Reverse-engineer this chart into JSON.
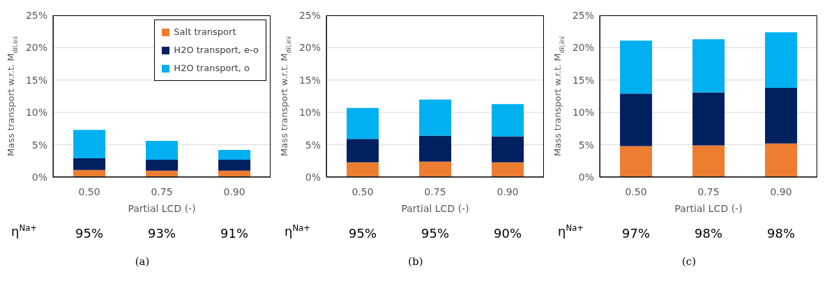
{
  "chart_data": [
    {
      "type": "bar",
      "stacked": true,
      "categories": [
        "0.50",
        "0.75",
        "0.90"
      ],
      "xlabel": "Partial LCD (-)",
      "ylabel": "Mass transport w.r.t. M$_{dil,ini}$",
      "ylim": [
        0,
        25
      ],
      "yticks": [
        {
          "value": 0,
          "label": "0%"
        },
        {
          "value": 5,
          "label": "5%"
        },
        {
          "value": 10,
          "label": "10%"
        },
        {
          "value": 15,
          "label": "15%"
        },
        {
          "value": 20,
          "label": "20%"
        },
        {
          "value": 25,
          "label": "25%"
        }
      ],
      "grid": "y",
      "legend": "top right",
      "series": [
        {
          "name": "Salt transport",
          "color": "#ed7d31",
          "values": [
            1.1,
            1.0,
            1.0
          ]
        },
        {
          "name": "H2O transport, e-o",
          "color": "#002060",
          "values": [
            1.8,
            1.7,
            1.7
          ]
        },
        {
          "name": "H2O transport, o",
          "color": "#00b0f0",
          "values": [
            4.4,
            2.9,
            1.5
          ]
        }
      ],
      "annotations": [
        "η$^{Na+}$",
        "95%",
        "93%",
        "91%",
        "(a)"
      ]
    },
    {
      "type": "bar",
      "stacked": true,
      "categories": [
        "0.50",
        "0.75",
        "0.90"
      ],
      "xlabel": "Partial LCD (-)",
      "ylabel": "Mass transport w.r.t. M$_{dil,ini}$",
      "ylim": [
        0,
        25
      ],
      "yticks": [
        {
          "value": 0,
          "label": "0%"
        },
        {
          "value": 5,
          "label": "5%"
        },
        {
          "value": 10,
          "label": "10%"
        },
        {
          "value": 15,
          "label": "15%"
        },
        {
          "value": 20,
          "label": "20%"
        },
        {
          "value": 25,
          "label": "25%"
        }
      ],
      "grid": "y",
      "series": [
        {
          "color": "#ed7d31",
          "values": [
            2.3,
            2.4,
            2.3
          ]
        },
        {
          "color": "#002060",
          "values": [
            3.6,
            4.0,
            4.0
          ]
        },
        {
          "color": "#00b0f0",
          "values": [
            4.8,
            5.6,
            5.0
          ]
        }
      ],
      "annotations": [
        "η$^{Na+}$",
        "95%",
        "95%",
        "90%",
        "(b)"
      ]
    },
    {
      "type": "bar",
      "stacked": true,
      "categories": [
        "0.50",
        "0.75",
        "0.90"
      ],
      "xlabel": "Partial LCD (-)",
      "ylabel": "Mass transport w.r.t. M$_{dil,ini}$",
      "ylim": [
        0,
        25
      ],
      "yticks": [
        {
          "value": 0,
          "label": "0%"
        },
        {
          "value": 5,
          "label": "5%"
        },
        {
          "value": 10,
          "label": "10%"
        },
        {
          "value": 15,
          "label": "15%"
        },
        {
          "value": 20,
          "label": "20%"
        },
        {
          "value": 25,
          "label": "25%"
        }
      ],
      "grid": "y",
      "series": [
        {
          "color": "#ed7d31",
          "values": [
            4.8,
            4.9,
            5.2
          ]
        },
        {
          "color": "#002060",
          "values": [
            8.1,
            8.2,
            8.6
          ]
        },
        {
          "color": "#00b0f0",
          "values": [
            8.2,
            8.2,
            8.6
          ]
        }
      ],
      "annotations": [
        "η$^{Na+}$",
        "97%",
        "98%",
        "98%",
        "(c)"
      ]
    }
  ]
}
